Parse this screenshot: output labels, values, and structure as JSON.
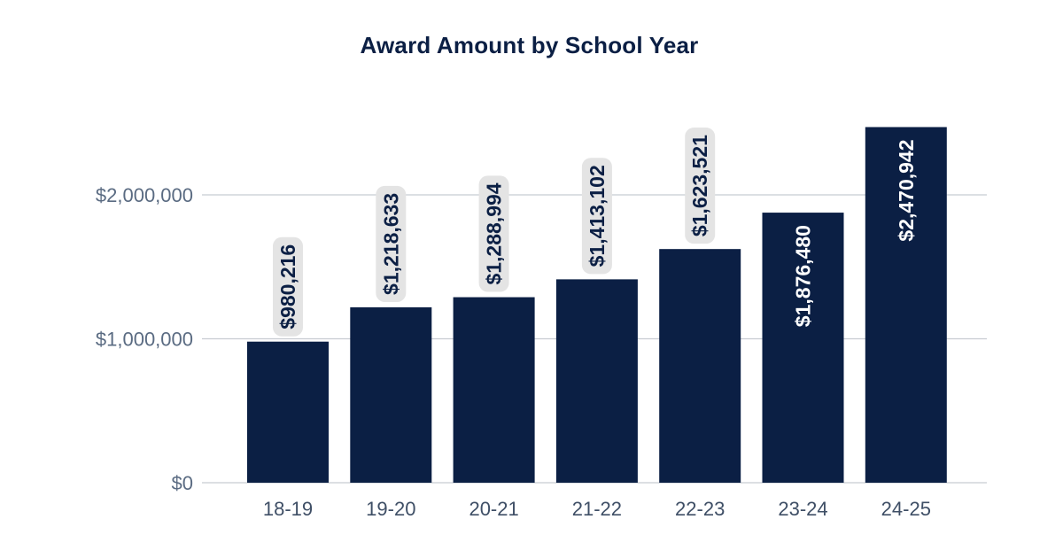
{
  "chart_data": {
    "type": "bar",
    "title": "Award Amount by School Year",
    "xlabel": "",
    "ylabel": "",
    "categories": [
      "18-19",
      "19-20",
      "20-21",
      "21-22",
      "22-23",
      "23-24",
      "24-25"
    ],
    "values": [
      980216,
      1218633,
      1288994,
      1413102,
      1623521,
      1876480,
      2470942
    ],
    "data_labels": [
      "$980,216",
      "$1,218,633",
      "$1,288,994",
      "$1,413,102",
      "$1,623,521",
      "$1,876,480",
      "$2,470,942"
    ],
    "ylim": [
      0,
      2500000
    ],
    "yticks": [
      0,
      1000000,
      2000000
    ],
    "ytick_labels": [
      "$0",
      "$1,000,000",
      "$2,000,000"
    ],
    "grid": true,
    "legend": "none",
    "colors": {
      "bar": "#0b1f44",
      "label_bg": "#e4e4e4",
      "label_text_outside": "#0b1f44",
      "label_text_inside": "#ffffff",
      "grid": "#c8ccd2",
      "axis_text": "#5a6b82",
      "title": "#0b1f44"
    }
  }
}
